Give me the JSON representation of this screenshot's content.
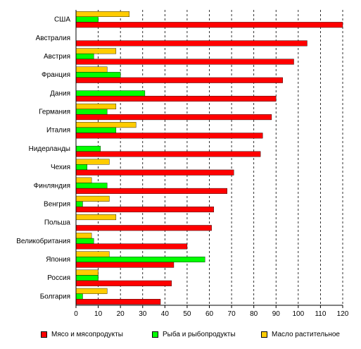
{
  "chart_data": {
    "type": "bar",
    "orientation": "horizontal",
    "categories": [
      "США",
      "Австралия",
      "Австрия",
      "Франция",
      "Дания",
      "Германия",
      "Италия",
      "Нидерланды",
      "Чехия",
      "Финляндия",
      "Венгрия",
      "Польша",
      "Великобритания",
      "Япония",
      "Россия",
      "Болгария"
    ],
    "series": [
      {
        "name": "Мясо и мясопродукты",
        "color": "#ff0000",
        "values": [
          120,
          104,
          98,
          93,
          90,
          88,
          84,
          83,
          71,
          68,
          62,
          61,
          50,
          44,
          43,
          38
        ]
      },
      {
        "name": "Рыба и рыбопродукты",
        "color": "#00ff00",
        "values": [
          10,
          0,
          8,
          20,
          31,
          14,
          18,
          11,
          5,
          14,
          3,
          0,
          8,
          58,
          10,
          3
        ]
      },
      {
        "name": "Масло растительное",
        "color": "#ffcc00",
        "values": [
          24,
          0,
          18,
          14,
          0,
          18,
          27,
          0,
          15,
          7,
          15,
          18,
          7,
          15,
          10,
          14
        ]
      }
    ],
    "xlim": [
      0,
      120
    ],
    "xticks": [
      0,
      10,
      20,
      30,
      40,
      50,
      60,
      70,
      80,
      90,
      100,
      110,
      120
    ],
    "grid": "vertical dashed",
    "legend_position": "bottom"
  }
}
